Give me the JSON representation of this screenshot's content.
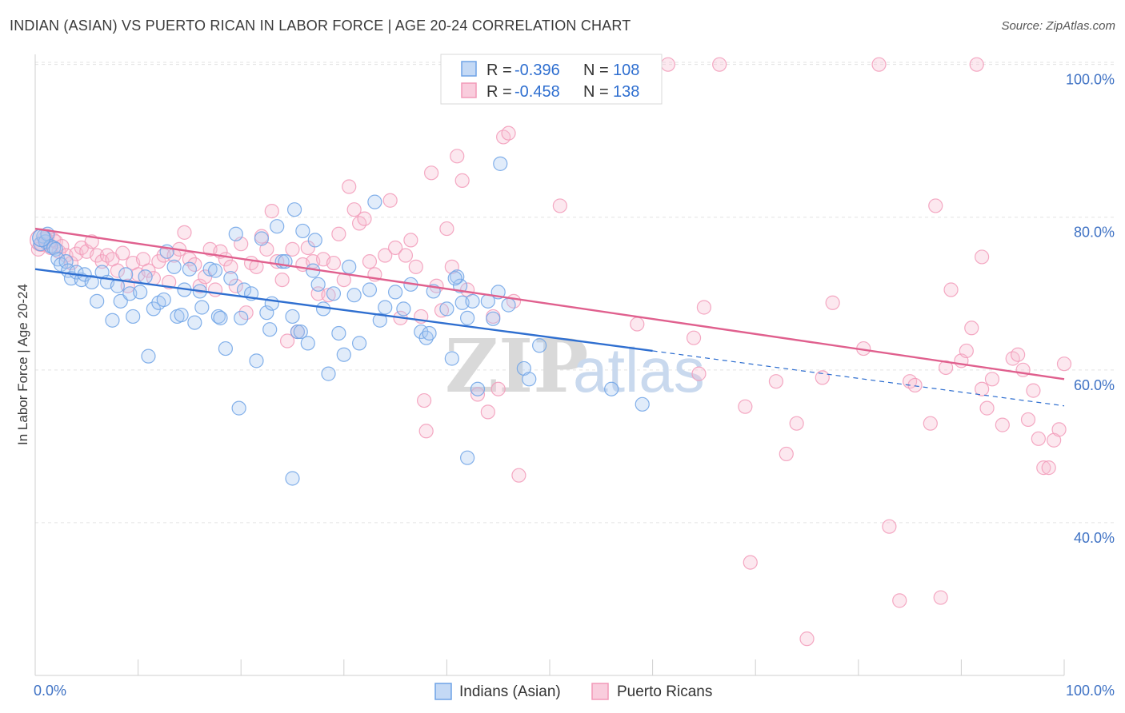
{
  "title": "INDIAN (ASIAN) VS PUERTO RICAN IN LABOR FORCE | AGE 20-24 CORRELATION CHART",
  "source": "Source: ZipAtlas.com",
  "watermark": {
    "zip": "ZIP",
    "atlas": "atlas"
  },
  "colors": {
    "blue": "#6fa3e6",
    "blue_line": "#2f6fd0",
    "pink": "#f29ab8",
    "pink_line": "#e0608e",
    "tick": "#3f72c4",
    "grid": "#e3e3e3"
  },
  "legend": {
    "rows": [
      {
        "r_label": "R =",
        "r_value": "-0.396",
        "n_label": "N =",
        "n_value": "108"
      },
      {
        "r_label": "R =",
        "r_value": "-0.458",
        "n_label": "N =",
        "n_value": "138"
      }
    ]
  },
  "chart_data": {
    "type": "scatter",
    "title": "INDIAN (ASIAN) VS PUERTO RICAN IN LABOR FORCE | AGE 20-24 CORRELATION CHART",
    "xlabel": "",
    "ylabel": "In Labor Force | Age 20-24",
    "xlim": [
      0,
      100
    ],
    "ylim": [
      20,
      103
    ],
    "x_tick_labels": [
      "0.0%",
      "100.0%"
    ],
    "y_ticks": [
      40,
      60,
      80,
      100
    ],
    "y_tick_labels": [
      "40.0%",
      "60.0%",
      "80.0%",
      "100.0%"
    ],
    "grid": true,
    "legend_placement": "top-center",
    "series": [
      {
        "name": "Indians (Asian)",
        "color": "#6fa3e6",
        "r": -0.396,
        "n": 108,
        "trend": {
          "x0": 0,
          "y0": 73.2,
          "x1": 60,
          "y1": 62.5,
          "dash_to_x": 100,
          "dash_to_y": 55.3
        },
        "points": [
          [
            0.5,
            76.5
          ],
          [
            0.8,
            77.5
          ],
          [
            1.0,
            76.8
          ],
          [
            1.2,
            77.8
          ],
          [
            1.5,
            76.2
          ],
          [
            1.8,
            76.0
          ],
          [
            2.0,
            75.8
          ],
          [
            2.2,
            74.5
          ],
          [
            2.5,
            73.8
          ],
          [
            3.0,
            74.2
          ],
          [
            3.2,
            73.0
          ],
          [
            3.5,
            72.0
          ],
          [
            4.0,
            72.8
          ],
          [
            4.5,
            71.8
          ],
          [
            4.8,
            72.5
          ],
          [
            5.5,
            71.5
          ],
          [
            6.0,
            69.0
          ],
          [
            6.5,
            72.8
          ],
          [
            7.0,
            71.5
          ],
          [
            7.5,
            66.5
          ],
          [
            8.0,
            71.0
          ],
          [
            8.3,
            69.0
          ],
          [
            8.8,
            72.5
          ],
          [
            9.2,
            70.0
          ],
          [
            9.5,
            67.0
          ],
          [
            10.2,
            70.2
          ],
          [
            10.7,
            72.2
          ],
          [
            11.0,
            61.8
          ],
          [
            11.5,
            68.0
          ],
          [
            12.0,
            68.8
          ],
          [
            12.5,
            69.2
          ],
          [
            12.8,
            75.5
          ],
          [
            13.5,
            73.5
          ],
          [
            13.8,
            67.0
          ],
          [
            14.2,
            67.2
          ],
          [
            14.5,
            70.5
          ],
          [
            15.0,
            73.2
          ],
          [
            15.5,
            66.2
          ],
          [
            16.0,
            70.3
          ],
          [
            16.2,
            68.2
          ],
          [
            17.0,
            73.2
          ],
          [
            17.5,
            73.0
          ],
          [
            17.8,
            67.0
          ],
          [
            18.0,
            66.8
          ],
          [
            18.5,
            62.8
          ],
          [
            19.0,
            72.0
          ],
          [
            19.5,
            77.8
          ],
          [
            19.8,
            55.0
          ],
          [
            20.0,
            66.8
          ],
          [
            20.3,
            70.5
          ],
          [
            21.0,
            70.0
          ],
          [
            21.5,
            61.2
          ],
          [
            22.0,
            77.2
          ],
          [
            22.5,
            67.5
          ],
          [
            22.8,
            65.3
          ],
          [
            23.0,
            68.7
          ],
          [
            23.5,
            78.8
          ],
          [
            24.0,
            74.2
          ],
          [
            24.3,
            74.2
          ],
          [
            25.0,
            67.0
          ],
          [
            25.2,
            81.0
          ],
          [
            25.5,
            65.0
          ],
          [
            25.8,
            65.0
          ],
          [
            26.0,
            78.2
          ],
          [
            26.5,
            63.5
          ],
          [
            27.0,
            73.0
          ],
          [
            27.2,
            77.0
          ],
          [
            27.5,
            71.2
          ],
          [
            28.0,
            68.0
          ],
          [
            28.5,
            59.5
          ],
          [
            29.0,
            70.0
          ],
          [
            29.5,
            64.8
          ],
          [
            30.0,
            62.0
          ],
          [
            30.5,
            73.5
          ],
          [
            31.0,
            69.8
          ],
          [
            31.5,
            63.5
          ],
          [
            32.5,
            70.5
          ],
          [
            33.0,
            82.0
          ],
          [
            33.5,
            66.5
          ],
          [
            34.0,
            68.2
          ],
          [
            35.0,
            70.2
          ],
          [
            35.8,
            68.0
          ],
          [
            36.5,
            71.2
          ],
          [
            37.5,
            65.0
          ],
          [
            38.0,
            64.2
          ],
          [
            38.3,
            64.8
          ],
          [
            38.7,
            70.3
          ],
          [
            40.0,
            68.0
          ],
          [
            40.5,
            61.5
          ],
          [
            41.0,
            72.2
          ],
          [
            41.3,
            71.0
          ],
          [
            41.5,
            68.8
          ],
          [
            42.0,
            66.8
          ],
          [
            42.5,
            69.0
          ],
          [
            43.0,
            57.5
          ],
          [
            44.0,
            69.0
          ],
          [
            44.5,
            66.7
          ],
          [
            45.0,
            70.2
          ],
          [
            45.2,
            87.0
          ],
          [
            46.0,
            68.5
          ],
          [
            47.5,
            60.2
          ],
          [
            48.0,
            58.8
          ],
          [
            49.0,
            63.2
          ],
          [
            42.0,
            48.5
          ],
          [
            25.0,
            45.8
          ],
          [
            56.0,
            57.5
          ],
          [
            59.0,
            55.5
          ],
          [
            40.8,
            72.0
          ]
        ]
      },
      {
        "name": "Puerto Ricans",
        "color": "#f29ab8",
        "r": -0.458,
        "n": 138,
        "trend": {
          "x0": 0,
          "y0": 78.5,
          "x1": 100,
          "y1": 58.8
        },
        "points": [
          [
            0.3,
            75.8
          ],
          [
            0.6,
            76.5
          ],
          [
            0.9,
            77.2
          ],
          [
            1.2,
            77.5
          ],
          [
            1.5,
            76.0
          ],
          [
            1.8,
            77.0
          ],
          [
            2.0,
            76.8
          ],
          [
            2.3,
            75.5
          ],
          [
            2.6,
            76.2
          ],
          [
            3.0,
            75.0
          ],
          [
            3.5,
            74.0
          ],
          [
            4.0,
            75.2
          ],
          [
            4.5,
            76.0
          ],
          [
            5.0,
            75.5
          ],
          [
            5.5,
            76.8
          ],
          [
            6.0,
            75.0
          ],
          [
            6.5,
            74.2
          ],
          [
            7.0,
            75.0
          ],
          [
            7.5,
            74.5
          ],
          [
            8.0,
            73.0
          ],
          [
            8.5,
            75.3
          ],
          [
            9.0,
            71.0
          ],
          [
            9.5,
            74.0
          ],
          [
            10.0,
            72.5
          ],
          [
            10.5,
            74.5
          ],
          [
            11.0,
            73.0
          ],
          [
            11.5,
            72.0
          ],
          [
            12.0,
            74.2
          ],
          [
            12.5,
            75.0
          ],
          [
            13.0,
            71.5
          ],
          [
            13.5,
            75.0
          ],
          [
            14.0,
            75.8
          ],
          [
            14.5,
            78.0
          ],
          [
            15.0,
            74.5
          ],
          [
            15.5,
            73.8
          ],
          [
            16.0,
            71.0
          ],
          [
            16.5,
            72.2
          ],
          [
            17.0,
            75.8
          ],
          [
            17.5,
            70.5
          ],
          [
            18.0,
            75.5
          ],
          [
            18.5,
            74.5
          ],
          [
            19.0,
            73.5
          ],
          [
            19.5,
            71.0
          ],
          [
            20.0,
            76.5
          ],
          [
            20.5,
            67.5
          ],
          [
            21.0,
            74.0
          ],
          [
            21.5,
            73.5
          ],
          [
            22.0,
            77.5
          ],
          [
            22.5,
            75.8
          ],
          [
            23.0,
            80.8
          ],
          [
            23.5,
            74.2
          ],
          [
            24.0,
            71.8
          ],
          [
            24.5,
            63.8
          ],
          [
            25.0,
            75.8
          ],
          [
            25.5,
            65.0
          ],
          [
            26.0,
            73.8
          ],
          [
            26.5,
            76.0
          ],
          [
            27.0,
            74.2
          ],
          [
            27.5,
            70.0
          ],
          [
            28.0,
            74.5
          ],
          [
            28.5,
            69.8
          ],
          [
            29.0,
            74.0
          ],
          [
            29.5,
            77.8
          ],
          [
            30.0,
            71.8
          ],
          [
            30.5,
            84.0
          ],
          [
            31.0,
            81.0
          ],
          [
            31.5,
            79.2
          ],
          [
            32.0,
            79.8
          ],
          [
            32.5,
            74.2
          ],
          [
            33.0,
            72.5
          ],
          [
            34.0,
            75.0
          ],
          [
            34.5,
            82.2
          ],
          [
            35.0,
            76.0
          ],
          [
            35.5,
            66.8
          ],
          [
            36.0,
            75.0
          ],
          [
            36.5,
            77.0
          ],
          [
            37.0,
            73.5
          ],
          [
            37.5,
            67.0
          ],
          [
            37.8,
            56.0
          ],
          [
            38.0,
            52.0
          ],
          [
            38.5,
            85.8
          ],
          [
            39.0,
            71.0
          ],
          [
            39.5,
            67.8
          ],
          [
            40.0,
            78.5
          ],
          [
            40.5,
            73.5
          ],
          [
            41.0,
            88.0
          ],
          [
            41.5,
            84.8
          ],
          [
            42.0,
            70.5
          ],
          [
            43.0,
            56.8
          ],
          [
            44.0,
            54.5
          ],
          [
            44.5,
            67.0
          ],
          [
            45.0,
            57.5
          ],
          [
            45.5,
            90.5
          ],
          [
            46.0,
            91.0
          ],
          [
            46.5,
            69.0
          ],
          [
            47.0,
            46.2
          ],
          [
            47.5,
            100.0
          ],
          [
            48.5,
            100.0
          ],
          [
            51.0,
            81.5
          ],
          [
            58.5,
            66.0
          ],
          [
            61.5,
            100.0
          ],
          [
            64.0,
            64.2
          ],
          [
            64.5,
            59.5
          ],
          [
            65.0,
            68.2
          ],
          [
            66.5,
            100.0
          ],
          [
            69.0,
            55.2
          ],
          [
            69.5,
            34.8
          ],
          [
            72.0,
            58.5
          ],
          [
            73.0,
            49.0
          ],
          [
            74.0,
            53.0
          ],
          [
            75.0,
            24.8
          ],
          [
            76.5,
            59.0
          ],
          [
            77.5,
            68.8
          ],
          [
            80.5,
            62.8
          ],
          [
            82.0,
            100.0
          ],
          [
            83.0,
            39.5
          ],
          [
            84.0,
            29.8
          ],
          [
            85.0,
            58.5
          ],
          [
            85.5,
            58.0
          ],
          [
            87.0,
            53.0
          ],
          [
            87.5,
            81.5
          ],
          [
            88.0,
            30.2
          ],
          [
            88.5,
            60.3
          ],
          [
            89.0,
            70.5
          ],
          [
            90.0,
            61.2
          ],
          [
            90.5,
            62.5
          ],
          [
            91.0,
            65.5
          ],
          [
            91.5,
            100.0
          ],
          [
            92.0,
            57.5
          ],
          [
            92.5,
            55.0
          ],
          [
            93.0,
            58.8
          ],
          [
            94.0,
            52.8
          ],
          [
            95.0,
            61.5
          ],
          [
            95.5,
            62.0
          ],
          [
            96.0,
            60.0
          ],
          [
            96.5,
            53.5
          ],
          [
            97.0,
            57.3
          ],
          [
            97.5,
            51.0
          ],
          [
            98.0,
            47.2
          ],
          [
            98.5,
            47.2
          ],
          [
            99.0,
            50.8
          ],
          [
            99.5,
            52.2
          ],
          [
            100.0,
            60.8
          ],
          [
            92.0,
            74.8
          ]
        ]
      }
    ]
  },
  "bottom_legend": {
    "items": [
      "Indians (Asian)",
      "Puerto Ricans"
    ]
  }
}
